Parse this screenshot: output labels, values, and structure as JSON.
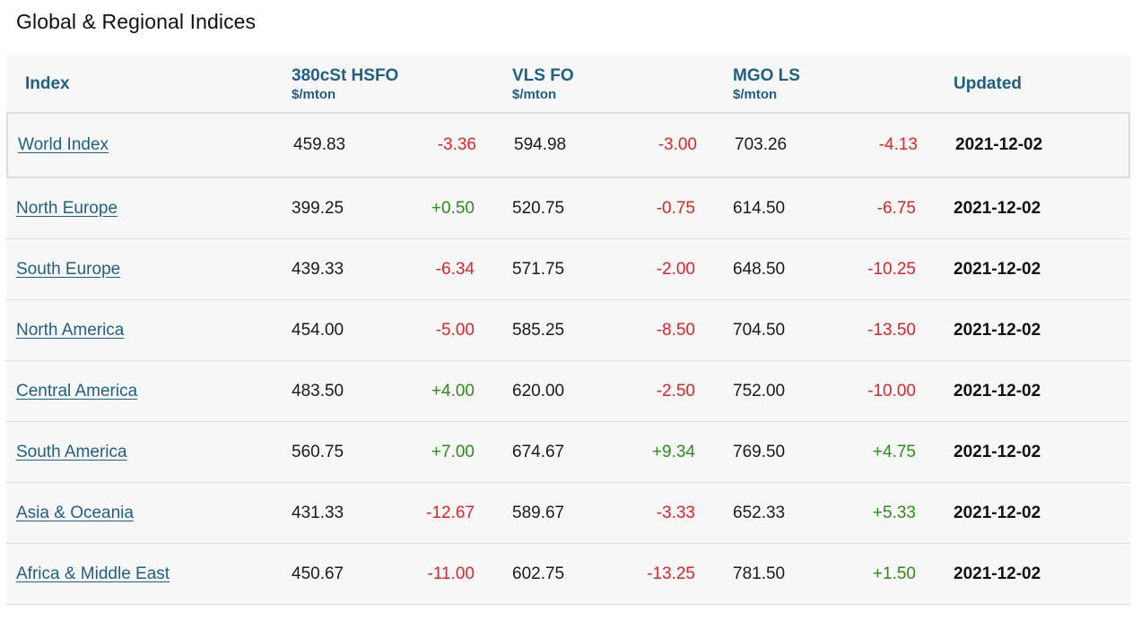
{
  "title": "Global & Regional Indices",
  "columns": {
    "index": "Index",
    "hsfo": {
      "label": "380cSt HSFO",
      "unit": "$/mton"
    },
    "vlsfo": {
      "label": "VLS FO",
      "unit": "$/mton"
    },
    "mgo": {
      "label": "MGO LS",
      "unit": "$/mton"
    },
    "updated": "Updated"
  },
  "rows": [
    {
      "name": "World Index",
      "hsfo": "459.83",
      "hsfo_chg": "-3.36",
      "vlsfo": "594.98",
      "vlsfo_chg": "-3.00",
      "mgo": "703.26",
      "mgo_chg": "-4.13",
      "updated": "2021-12-02"
    },
    {
      "name": "North Europe",
      "hsfo": "399.25",
      "hsfo_chg": "+0.50",
      "vlsfo": "520.75",
      "vlsfo_chg": "-0.75",
      "mgo": "614.50",
      "mgo_chg": "-6.75",
      "updated": "2021-12-02"
    },
    {
      "name": "South Europe",
      "hsfo": "439.33",
      "hsfo_chg": "-6.34",
      "vlsfo": "571.75",
      "vlsfo_chg": "-2.00",
      "mgo": "648.50",
      "mgo_chg": "-10.25",
      "updated": "2021-12-02"
    },
    {
      "name": "North America",
      "hsfo": "454.00",
      "hsfo_chg": "-5.00",
      "vlsfo": "585.25",
      "vlsfo_chg": "-8.50",
      "mgo": "704.50",
      "mgo_chg": "-13.50",
      "updated": "2021-12-02"
    },
    {
      "name": "Central America",
      "hsfo": "483.50",
      "hsfo_chg": "+4.00",
      "vlsfo": "620.00",
      "vlsfo_chg": "-2.50",
      "mgo": "752.00",
      "mgo_chg": "-10.00",
      "updated": "2021-12-02"
    },
    {
      "name": "South America",
      "hsfo": "560.75",
      "hsfo_chg": "+7.00",
      "vlsfo": "674.67",
      "vlsfo_chg": "+9.34",
      "mgo": "769.50",
      "mgo_chg": "+4.75",
      "updated": "2021-12-02"
    },
    {
      "name": "Asia & Oceania",
      "hsfo": "431.33",
      "hsfo_chg": "-12.67",
      "vlsfo": "589.67",
      "vlsfo_chg": "-3.33",
      "mgo": "652.33",
      "mgo_chg": "+5.33",
      "updated": "2021-12-02"
    },
    {
      "name": "Africa & Middle East",
      "hsfo": "450.67",
      "hsfo_chg": "-11.00",
      "vlsfo": "602.75",
      "vlsfo_chg": "-13.25",
      "mgo": "781.50",
      "mgo_chg": "+1.50",
      "updated": "2021-12-02"
    }
  ],
  "colors": {
    "link": "#1f5f86",
    "positive": "#2e8b1e",
    "negative": "#e0242a"
  }
}
